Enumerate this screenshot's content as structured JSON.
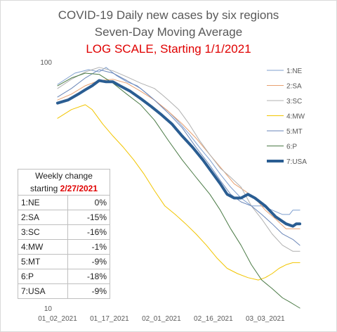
{
  "chart_data": {
    "type": "line",
    "title": "COVID-19 Daily new cases by six regions",
    "subtitle": "Seven-Day Moving Average",
    "subtitle2": "LOG SCALE, Starting 1/1/2021",
    "yscale": "log",
    "ylim": [
      10,
      100
    ],
    "y_ticks": [
      "100",
      "10"
    ],
    "x_ticks": [
      "01_02_2021",
      "01_17_2021",
      "02_01_2021",
      "02_16_2021",
      "03_03_2021"
    ],
    "x_range": [
      "01_02_2021",
      "03_14_2021"
    ],
    "grid": false,
    "legend_position": "right",
    "series": [
      {
        "name": "1:NE",
        "color": "#7f9fcf",
        "width": 1,
        "points": [
          [
            0,
            81
          ],
          [
            5,
            90
          ],
          [
            9,
            93
          ],
          [
            12,
            91
          ],
          [
            14,
            95
          ],
          [
            17,
            88
          ],
          [
            20,
            83
          ],
          [
            23,
            80
          ],
          [
            26,
            74
          ],
          [
            29,
            68
          ],
          [
            32,
            63
          ],
          [
            35,
            57
          ],
          [
            38,
            51
          ],
          [
            41,
            45
          ],
          [
            44,
            40
          ],
          [
            47,
            35
          ],
          [
            50,
            31
          ],
          [
            53,
            28
          ],
          [
            56,
            26
          ],
          [
            59,
            26
          ],
          [
            62,
            25
          ],
          [
            65,
            24
          ],
          [
            67,
            24
          ],
          [
            68,
            25
          ],
          [
            70,
            25
          ]
        ]
      },
      {
        "name": "2:SA",
        "color": "#e8a070",
        "width": 1,
        "points": [
          [
            0,
            70
          ],
          [
            4,
            74
          ],
          [
            8,
            80
          ],
          [
            12,
            84
          ],
          [
            16,
            85
          ],
          [
            20,
            82
          ],
          [
            24,
            76
          ],
          [
            28,
            70
          ],
          [
            32,
            63
          ],
          [
            36,
            56
          ],
          [
            40,
            49
          ],
          [
            44,
            42
          ],
          [
            48,
            36
          ],
          [
            51,
            32
          ],
          [
            54,
            30
          ],
          [
            57,
            28
          ],
          [
            60,
            25
          ],
          [
            63,
            23
          ],
          [
            66,
            21
          ],
          [
            68,
            21
          ],
          [
            70,
            21
          ]
        ]
      },
      {
        "name": "3:SC",
        "color": "#b0b0b0",
        "width": 1,
        "points": [
          [
            0,
            78
          ],
          [
            4,
            85
          ],
          [
            8,
            91
          ],
          [
            12,
            95
          ],
          [
            16,
            92
          ],
          [
            20,
            87
          ],
          [
            24,
            82
          ],
          [
            28,
            78
          ],
          [
            30,
            74
          ],
          [
            32,
            70
          ],
          [
            35,
            64
          ],
          [
            38,
            56
          ],
          [
            41,
            48
          ],
          [
            44,
            42
          ],
          [
            47,
            37
          ],
          [
            50,
            34
          ],
          [
            53,
            31
          ],
          [
            56,
            26
          ],
          [
            59,
            23
          ],
          [
            62,
            20
          ],
          [
            65,
            18
          ],
          [
            68,
            17
          ],
          [
            70,
            17
          ]
        ]
      },
      {
        "name": "4:MW",
        "color": "#f2c500",
        "width": 1,
        "points": [
          [
            0,
            59
          ],
          [
            4,
            64
          ],
          [
            8,
            67
          ],
          [
            10,
            64
          ],
          [
            13,
            56
          ],
          [
            16,
            50
          ],
          [
            19,
            45
          ],
          [
            22,
            40
          ],
          [
            25,
            35
          ],
          [
            28,
            30
          ],
          [
            31,
            26
          ],
          [
            34,
            24
          ],
          [
            37,
            22
          ],
          [
            40,
            20
          ],
          [
            43,
            18
          ],
          [
            46,
            16
          ],
          [
            49,
            14.5
          ],
          [
            52,
            13.8
          ],
          [
            55,
            13.3
          ],
          [
            58,
            13
          ],
          [
            60,
            13.3
          ],
          [
            62,
            13.8
          ],
          [
            64,
            14.5
          ],
          [
            66,
            15
          ],
          [
            68,
            15.3
          ],
          [
            70,
            15.3
          ]
        ]
      },
      {
        "name": "5:MT",
        "color": "#6a86b8",
        "width": 1,
        "points": [
          [
            0,
            72
          ],
          [
            4,
            78
          ],
          [
            8,
            86
          ],
          [
            12,
            93
          ],
          [
            16,
            90
          ],
          [
            20,
            84
          ],
          [
            24,
            78
          ],
          [
            28,
            70
          ],
          [
            32,
            62
          ],
          [
            36,
            54
          ],
          [
            40,
            45
          ],
          [
            44,
            38
          ],
          [
            47,
            33
          ],
          [
            50,
            29
          ],
          [
            53,
            27
          ],
          [
            56,
            26
          ],
          [
            59,
            24
          ],
          [
            62,
            22
          ],
          [
            65,
            20
          ],
          [
            68,
            19
          ],
          [
            70,
            18
          ]
        ]
      },
      {
        "name": "6:P",
        "color": "#4a7a45",
        "width": 1,
        "points": [
          [
            0,
            80
          ],
          [
            4,
            86
          ],
          [
            8,
            90
          ],
          [
            12,
            89
          ],
          [
            16,
            82
          ],
          [
            20,
            74
          ],
          [
            24,
            67
          ],
          [
            28,
            58
          ],
          [
            32,
            48
          ],
          [
            36,
            40
          ],
          [
            40,
            34
          ],
          [
            44,
            29
          ],
          [
            47,
            25
          ],
          [
            50,
            21
          ],
          [
            53,
            18
          ],
          [
            56,
            15
          ],
          [
            59,
            13
          ],
          [
            62,
            12
          ],
          [
            65,
            11
          ],
          [
            67,
            10.6
          ],
          [
            69,
            10.2
          ],
          [
            70,
            10
          ]
        ]
      },
      {
        "name": "7:USA",
        "color": "#2a5d92",
        "width": 4,
        "points": [
          [
            0,
            68
          ],
          [
            3,
            70
          ],
          [
            6,
            74
          ],
          [
            8,
            77
          ],
          [
            10,
            80
          ],
          [
            12,
            84
          ],
          [
            14,
            83
          ],
          [
            16,
            83
          ],
          [
            18,
            80
          ],
          [
            21,
            76
          ],
          [
            24,
            71
          ],
          [
            27,
            66
          ],
          [
            30,
            61
          ],
          [
            33,
            56
          ],
          [
            36,
            50
          ],
          [
            39,
            45
          ],
          [
            42,
            40
          ],
          [
            45,
            35
          ],
          [
            47,
            32
          ],
          [
            49,
            29
          ],
          [
            51,
            28
          ],
          [
            53,
            28
          ],
          [
            55,
            29
          ],
          [
            57,
            28
          ],
          [
            60,
            26
          ],
          [
            63,
            23.5
          ],
          [
            66,
            22
          ],
          [
            68,
            21.5
          ],
          [
            69,
            22
          ],
          [
            70,
            22
          ]
        ]
      }
    ]
  },
  "table": {
    "header1": "Weekly change",
    "header2_prefix": "starting ",
    "header2_date": "2/27/2021",
    "rows": [
      {
        "region": "1:NE",
        "change": "0%"
      },
      {
        "region": "2:SA",
        "change": "-15%"
      },
      {
        "region": "3:SC",
        "change": "-16%"
      },
      {
        "region": "4:MW",
        "change": "-1%"
      },
      {
        "region": "5:MT",
        "change": "-9%"
      },
      {
        "region": "6:P",
        "change": "-18%"
      },
      {
        "region": "7:USA",
        "change": "-9%"
      }
    ]
  }
}
